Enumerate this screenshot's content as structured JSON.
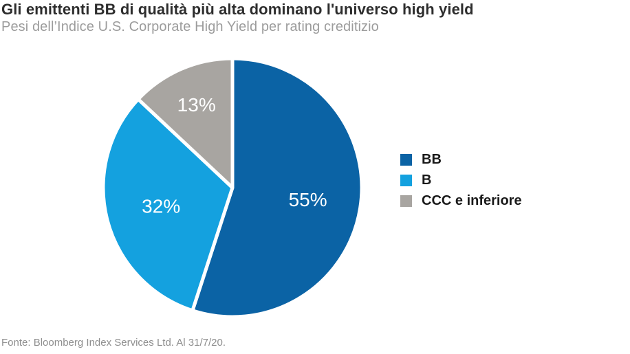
{
  "chart_data": {
    "type": "pie",
    "title": "Gli emittenti BB di qualità più alta dominano l'universo high yield",
    "subtitle": "Pesi dell’Indice U.S. Corporate High Yield per rating creditizio",
    "source": "Fonte: Bloomberg Index Services Ltd. Al 31/7/20.",
    "slices": [
      {
        "label": "BB",
        "value": 55,
        "color": "#0b63a5"
      },
      {
        "label": "B",
        "value": 32,
        "color": "#14a1df"
      },
      {
        "label": "CCC e inferiore",
        "value": 13,
        "color": "#a8a5a1"
      }
    ],
    "value_suffix": "%",
    "start_angle_deg": 0,
    "direction": "clockwise",
    "legend_position": "right",
    "slice_label_color": "#ffffff",
    "slice_separator_color": "#ffffff",
    "separator_width": 5,
    "label_radius_factors": [
      0.59,
      0.57,
      0.7
    ]
  },
  "colors": {
    "background": "#ffffff",
    "title": "#2d2d2d",
    "subtitle": "#9c9c9c",
    "source": "#8e8e8e",
    "legend_text": "#1a1a1a"
  }
}
